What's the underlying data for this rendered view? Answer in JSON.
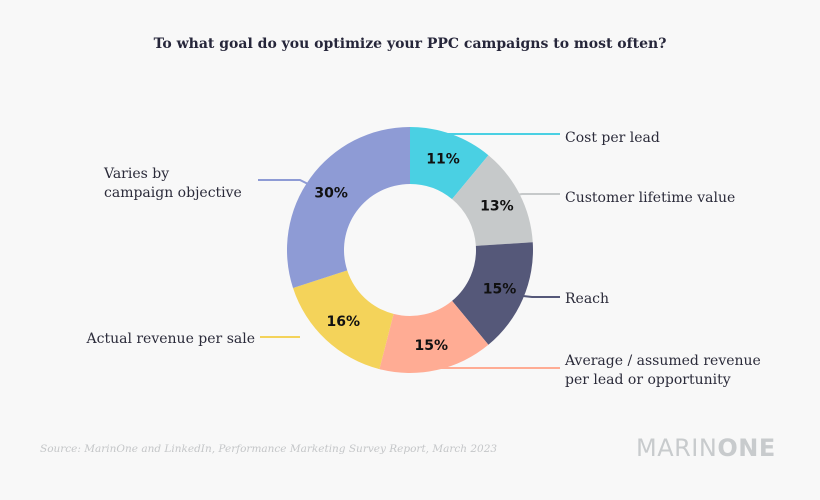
{
  "chart_data": {
    "type": "pie",
    "donut": true,
    "title": "To what goal do you optimize your PPC campaigns to most often?",
    "start": "top, clockwise",
    "slices": [
      {
        "label": "Cost per lead",
        "value": 11,
        "display": "11%",
        "color": "#4ad0e3"
      },
      {
        "label": "Customer lifetime value",
        "value": 13,
        "display": "13%",
        "color": "#c6c9ca"
      },
      {
        "label": "Reach",
        "value": 15,
        "display": "15%",
        "color": "#555879"
      },
      {
        "label": "Average / assumed revenue per lead or opportunity",
        "value": 15,
        "display": "15%",
        "color": "#ffac94"
      },
      {
        "label": "Actual revenue per sale",
        "value": 16,
        "display": "16%",
        "color": "#f4d35a"
      },
      {
        "label": "Varies by campaign objective",
        "value": 30,
        "display": "30%",
        "color": "#8e9bd5"
      }
    ],
    "legend": "leader-line labels"
  },
  "labels": {
    "cost_per_lead": [
      "Cost per lead"
    ],
    "customer_lifetime_value": [
      "Customer lifetime value"
    ],
    "reach": [
      "Reach"
    ],
    "avg_revenue": [
      "Average / assumed revenue",
      "per lead or opportunity"
    ],
    "actual_revenue": [
      "Actual revenue per sale"
    ],
    "varies": [
      "Varies by",
      "campaign objective"
    ]
  },
  "footer": {
    "source": "Source: MarinOne and LinkedIn, Performance Marketing Survey Report, March 2023",
    "logo_light": "MARIN",
    "logo_bold": "ONE"
  }
}
